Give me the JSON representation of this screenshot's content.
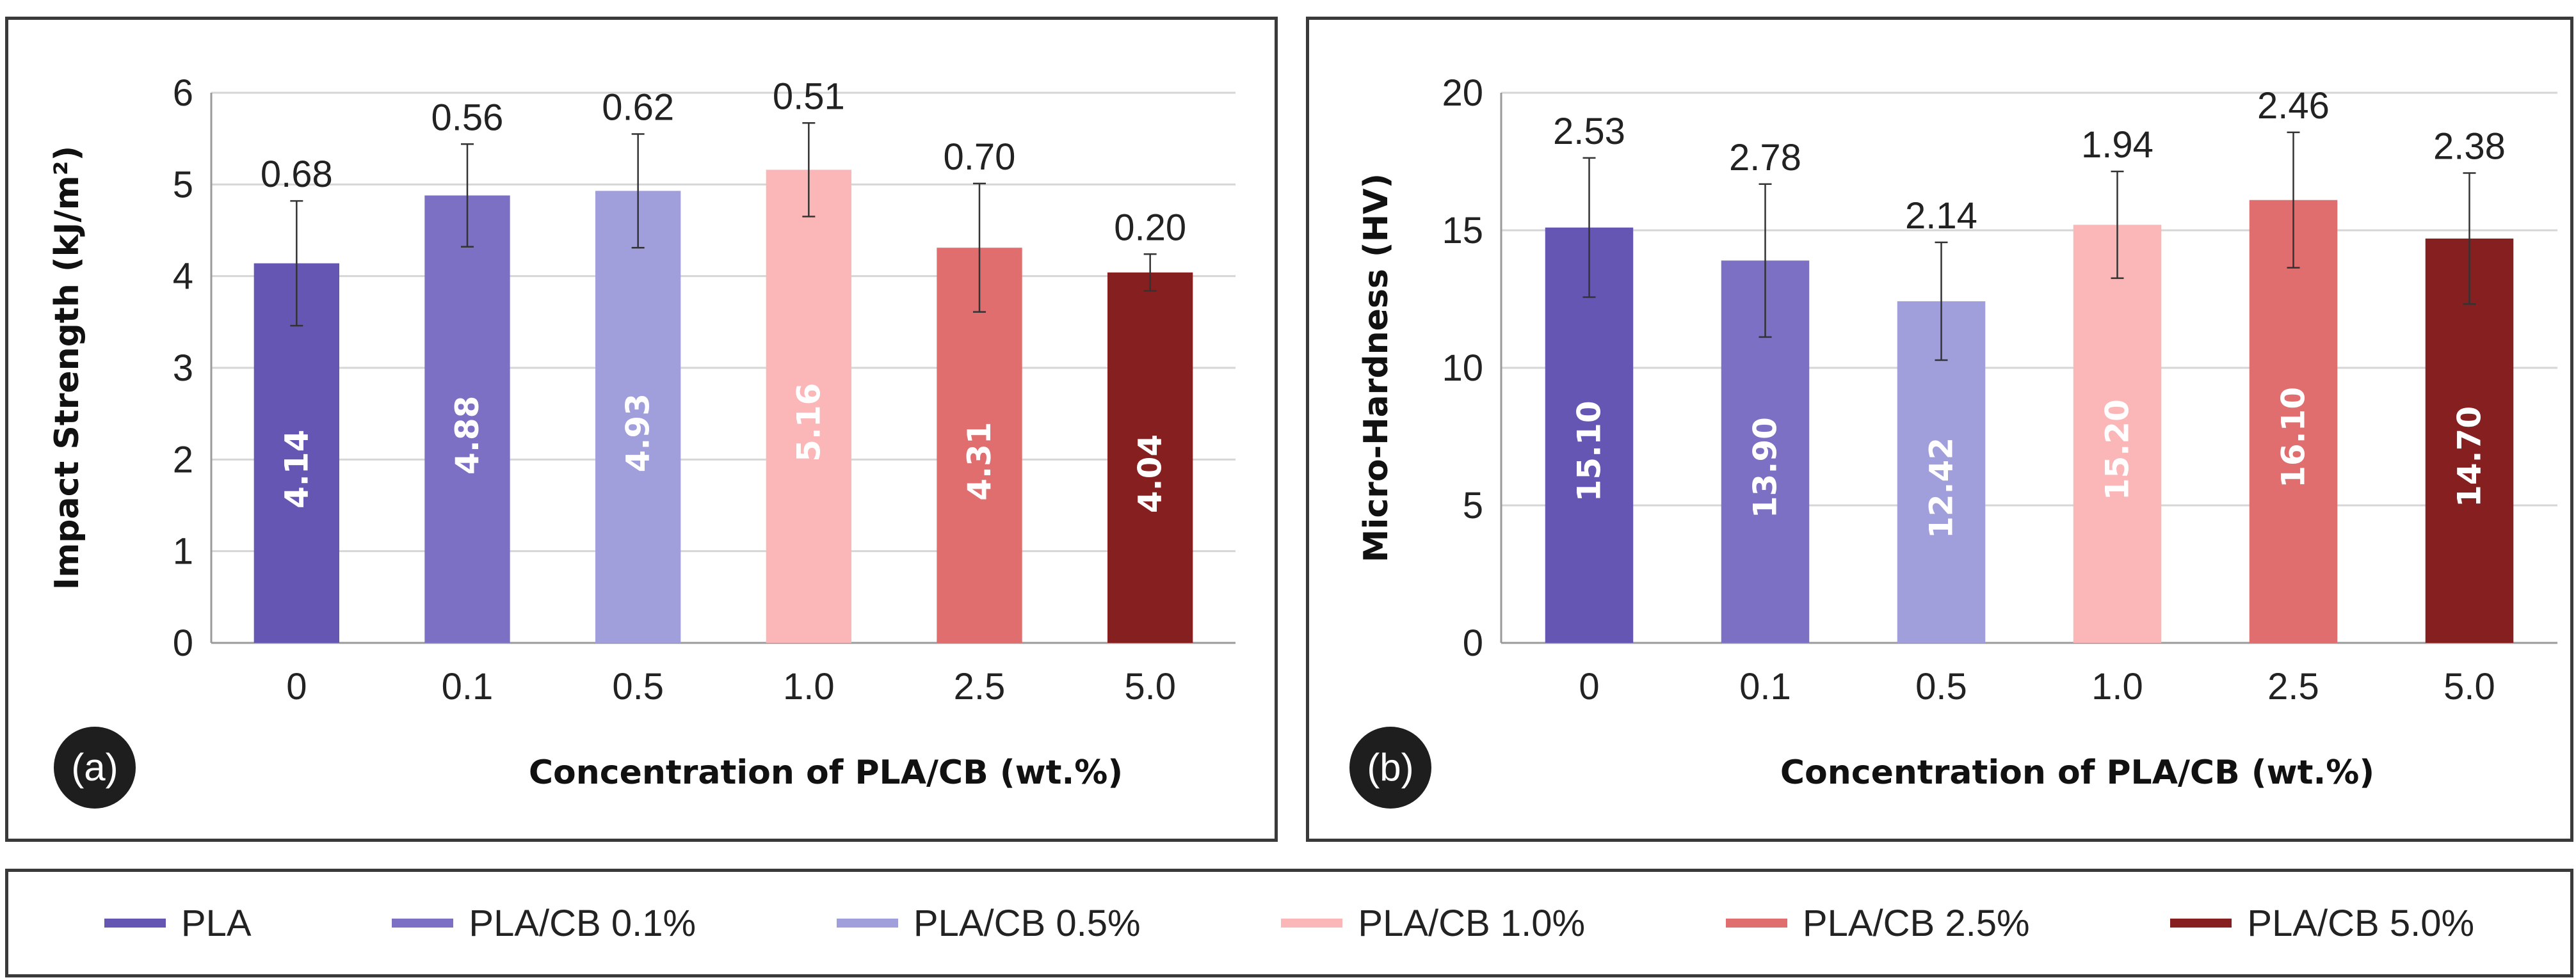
{
  "colors": [
    "#6656b4",
    "#7b70c3",
    "#a19edc",
    "#fbb6b8",
    "#e06e6e",
    "#861f1f"
  ],
  "legend": {
    "items": [
      {
        "label": "PLA",
        "color": "#6656b4"
      },
      {
        "label": "PLA/CB 0.1%",
        "color": "#7b70c3"
      },
      {
        "label": "PLA/CB 0.5%",
        "color": "#a19edc"
      },
      {
        "label": "PLA/CB 1.0%",
        "color": "#fbb6b8"
      },
      {
        "label": "PLA/CB 2.5%",
        "color": "#e06e6e"
      },
      {
        "label": "PLA/CB 5.0%",
        "color": "#861f1f"
      }
    ]
  },
  "chart_data": [
    {
      "panel_label": "(a)",
      "type": "bar",
      "title": "",
      "xlabel": "Concentration of PLA/CB (wt.%)",
      "ylabel": "Impact Strength (kJ/m²)",
      "categories": [
        "0",
        "0.1",
        "0.5",
        "1.0",
        "2.5",
        "5.0"
      ],
      "values": [
        4.14,
        4.88,
        4.93,
        5.16,
        4.31,
        4.04
      ],
      "value_labels": [
        "4.14",
        "4.88",
        "4.93",
        "5.16",
        "4.31",
        "4.04"
      ],
      "errors": [
        0.68,
        0.56,
        0.62,
        0.51,
        0.7,
        0.2
      ],
      "error_labels": [
        "0.68",
        "0.56",
        "0.62",
        "0.51",
        "0.70",
        "0.20"
      ],
      "ylim": [
        0,
        6
      ],
      "yticks": [
        0,
        1,
        2,
        3,
        4,
        5,
        6
      ],
      "ytick_labels": [
        "0",
        "1",
        "2",
        "3",
        "4",
        "5",
        "6"
      ],
      "grid": true
    },
    {
      "panel_label": "(b)",
      "type": "bar",
      "title": "",
      "xlabel": "Concentration of PLA/CB (wt.%)",
      "ylabel": "Micro-Hardness (HV)",
      "categories": [
        "0",
        "0.1",
        "0.5",
        "1.0",
        "2.5",
        "5.0"
      ],
      "values": [
        15.1,
        13.9,
        12.42,
        15.2,
        16.1,
        14.7
      ],
      "value_labels": [
        "15.10",
        "13.90",
        "12.42",
        "15.20",
        "16.10",
        "14.70"
      ],
      "errors": [
        2.53,
        2.78,
        2.14,
        1.94,
        2.46,
        2.38
      ],
      "error_labels": [
        "2.53",
        "2.78",
        "2.14",
        "1.94",
        "2.46",
        "2.38"
      ],
      "ylim": [
        0,
        20
      ],
      "yticks": [
        0,
        5,
        10,
        15,
        20
      ],
      "ytick_labels": [
        "0",
        "5",
        "10",
        "15",
        "20"
      ],
      "grid": true
    }
  ]
}
